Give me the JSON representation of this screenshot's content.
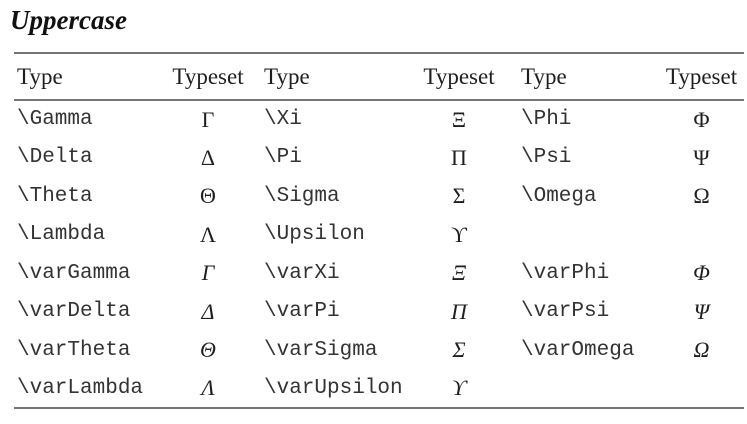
{
  "title": "Uppercase",
  "table": {
    "headers": [
      "Type",
      "Typeset",
      "Type",
      "Typeset",
      "Type",
      "Typeset"
    ],
    "rows": [
      [
        "\\Gamma",
        "Γ",
        "\\Xi",
        "Ξ",
        "\\Phi",
        "Φ"
      ],
      [
        "\\Delta",
        "Δ",
        "\\Pi",
        "Π",
        "\\Psi",
        "Ψ"
      ],
      [
        "\\Theta",
        "Θ",
        "\\Sigma",
        "Σ",
        "\\Omega",
        "Ω"
      ],
      [
        "\\Lambda",
        "Λ",
        "\\Upsilon",
        "ϒ",
        "",
        ""
      ],
      [
        "\\varGamma",
        "Γ",
        "\\varXi",
        "Ξ",
        "\\varPhi",
        "Φ"
      ],
      [
        "\\varDelta",
        "Δ",
        "\\varPi",
        "Π",
        "\\varPsi",
        "Ψ"
      ],
      [
        "\\varTheta",
        "Θ",
        "\\varSigma",
        "Σ",
        "\\varOmega",
        "Ω"
      ],
      [
        "\\varLambda",
        "Λ",
        "\\varUpsilon",
        "ϒ",
        "",
        ""
      ]
    ]
  },
  "colors": {
    "rule": "#757575",
    "text": "#1f1f1f",
    "mono_text": "#333333",
    "background": "#ffffff"
  }
}
